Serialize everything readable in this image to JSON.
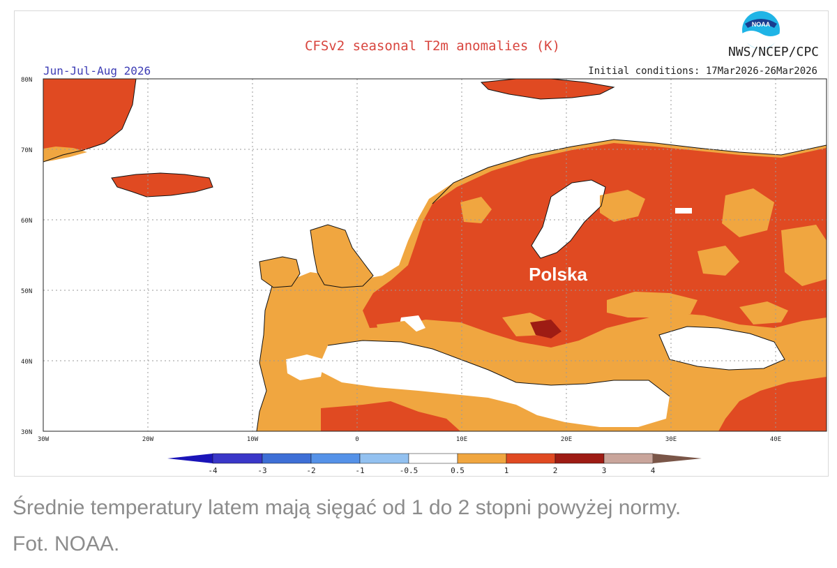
{
  "map": {
    "title": "CFSv2 seasonal T2m anomalies (K)",
    "agency": "NWS/NCEP/CPC",
    "season": "Jun-Jul-Aug 2026",
    "init_conditions": "Initial conditions: 17Mar2026-26Mar2026",
    "logo_text": "NOAA",
    "highlight_label": "Polska",
    "lat_labels": [
      "80N",
      "70N",
      "60N",
      "50N",
      "40N",
      "30N"
    ],
    "lon_labels": [
      "30W",
      "20W",
      "10W",
      "0",
      "10E",
      "20E",
      "30E",
      "40E"
    ],
    "legend_ticks": [
      "-4",
      "-3",
      "-2",
      "-1",
      "-0.5",
      "0.5",
      "1",
      "2",
      "3",
      "4"
    ],
    "legend_colors": {
      "below_-4": "#1a14b8",
      "-4_-3": "#3a37c8",
      "-3_-2": "#3e6fd6",
      "-2_-1": "#5592e8",
      "-1_-0.5": "#93c1f0",
      "neutral": "#ffffff",
      "0.5_1": "#f0a640",
      "1_2": "#e04a22",
      "2_3": "#9e1c14",
      "3_4": "#c9a59b",
      "above_4": "#7a5648"
    }
  },
  "caption": {
    "line1": "Średnie temperatury latem mają sięgać od 1 do 2 stopni powyżej normy.",
    "line2": "Fot. NOAA."
  }
}
